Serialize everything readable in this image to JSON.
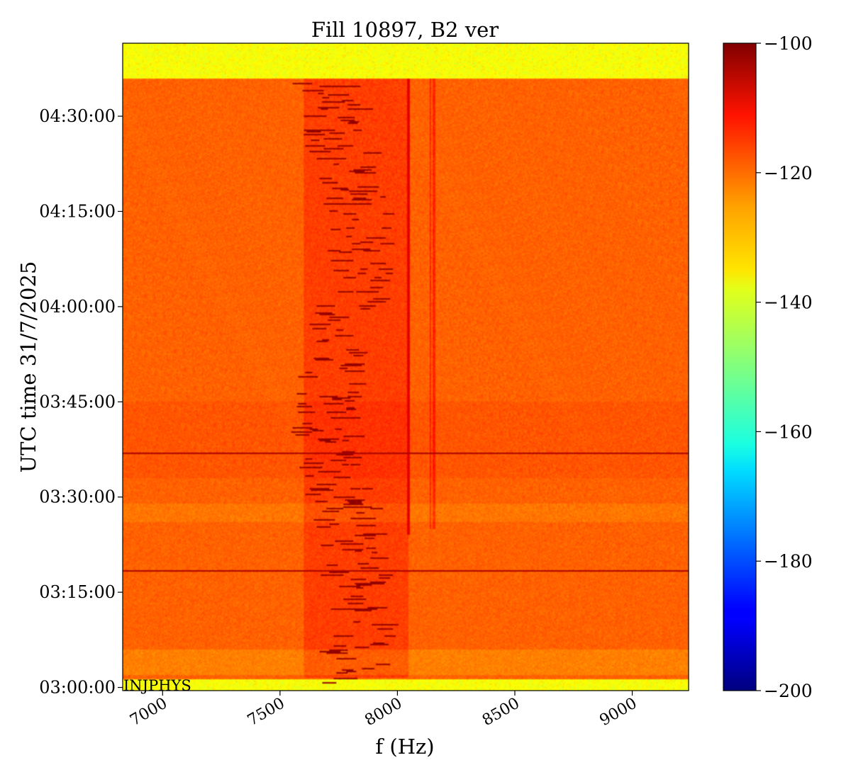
{
  "chart_data": {
    "type": "heatmap",
    "title": "Fill 10897, B2 ver",
    "xlabel": "f (Hz)",
    "ylabel": "UTC time 31/7/2025",
    "xlim": [
      6830,
      9240
    ],
    "ylim_minutes_after_0300": [
      -0.5,
      101.5
    ],
    "x_ticks": [
      7000,
      7500,
      8000,
      8500,
      9000
    ],
    "x_tick_labels": [
      "7000",
      "7500",
      "8000",
      "8500",
      "9000"
    ],
    "y_ticks_minutes_after_0300": [
      0,
      15,
      30,
      45,
      60,
      75,
      90
    ],
    "y_tick_labels": [
      "03:00:00",
      "03:15:00",
      "03:30:00",
      "03:45:00",
      "04:00:00",
      "04:15:00",
      "04:30:00"
    ],
    "annotation": "INJPHYS",
    "colorbar": {
      "colormap": "jet",
      "min": -200,
      "max": -100,
      "ticks": [
        -100,
        -120,
        -140,
        -160,
        -180,
        -200
      ],
      "tick_labels": [
        "−100",
        "−120",
        "−140",
        "−160",
        "−180",
        "−200"
      ]
    },
    "features": {
      "background_level": -122,
      "edge_bands_level": -138,
      "edge_band_bottom_minutes": [
        -0.5,
        1.2
      ],
      "edge_band_top_minutes": [
        96.0,
        101.5
      ],
      "strong_line_hz": 8045,
      "weaker_lines_hz": [
        8140,
        8155
      ],
      "horizontal_lines_minutes": [
        18.5,
        37.0
      ],
      "tune_band_hz_range": [
        7600,
        8050
      ],
      "tune_band_level": -108
    }
  }
}
